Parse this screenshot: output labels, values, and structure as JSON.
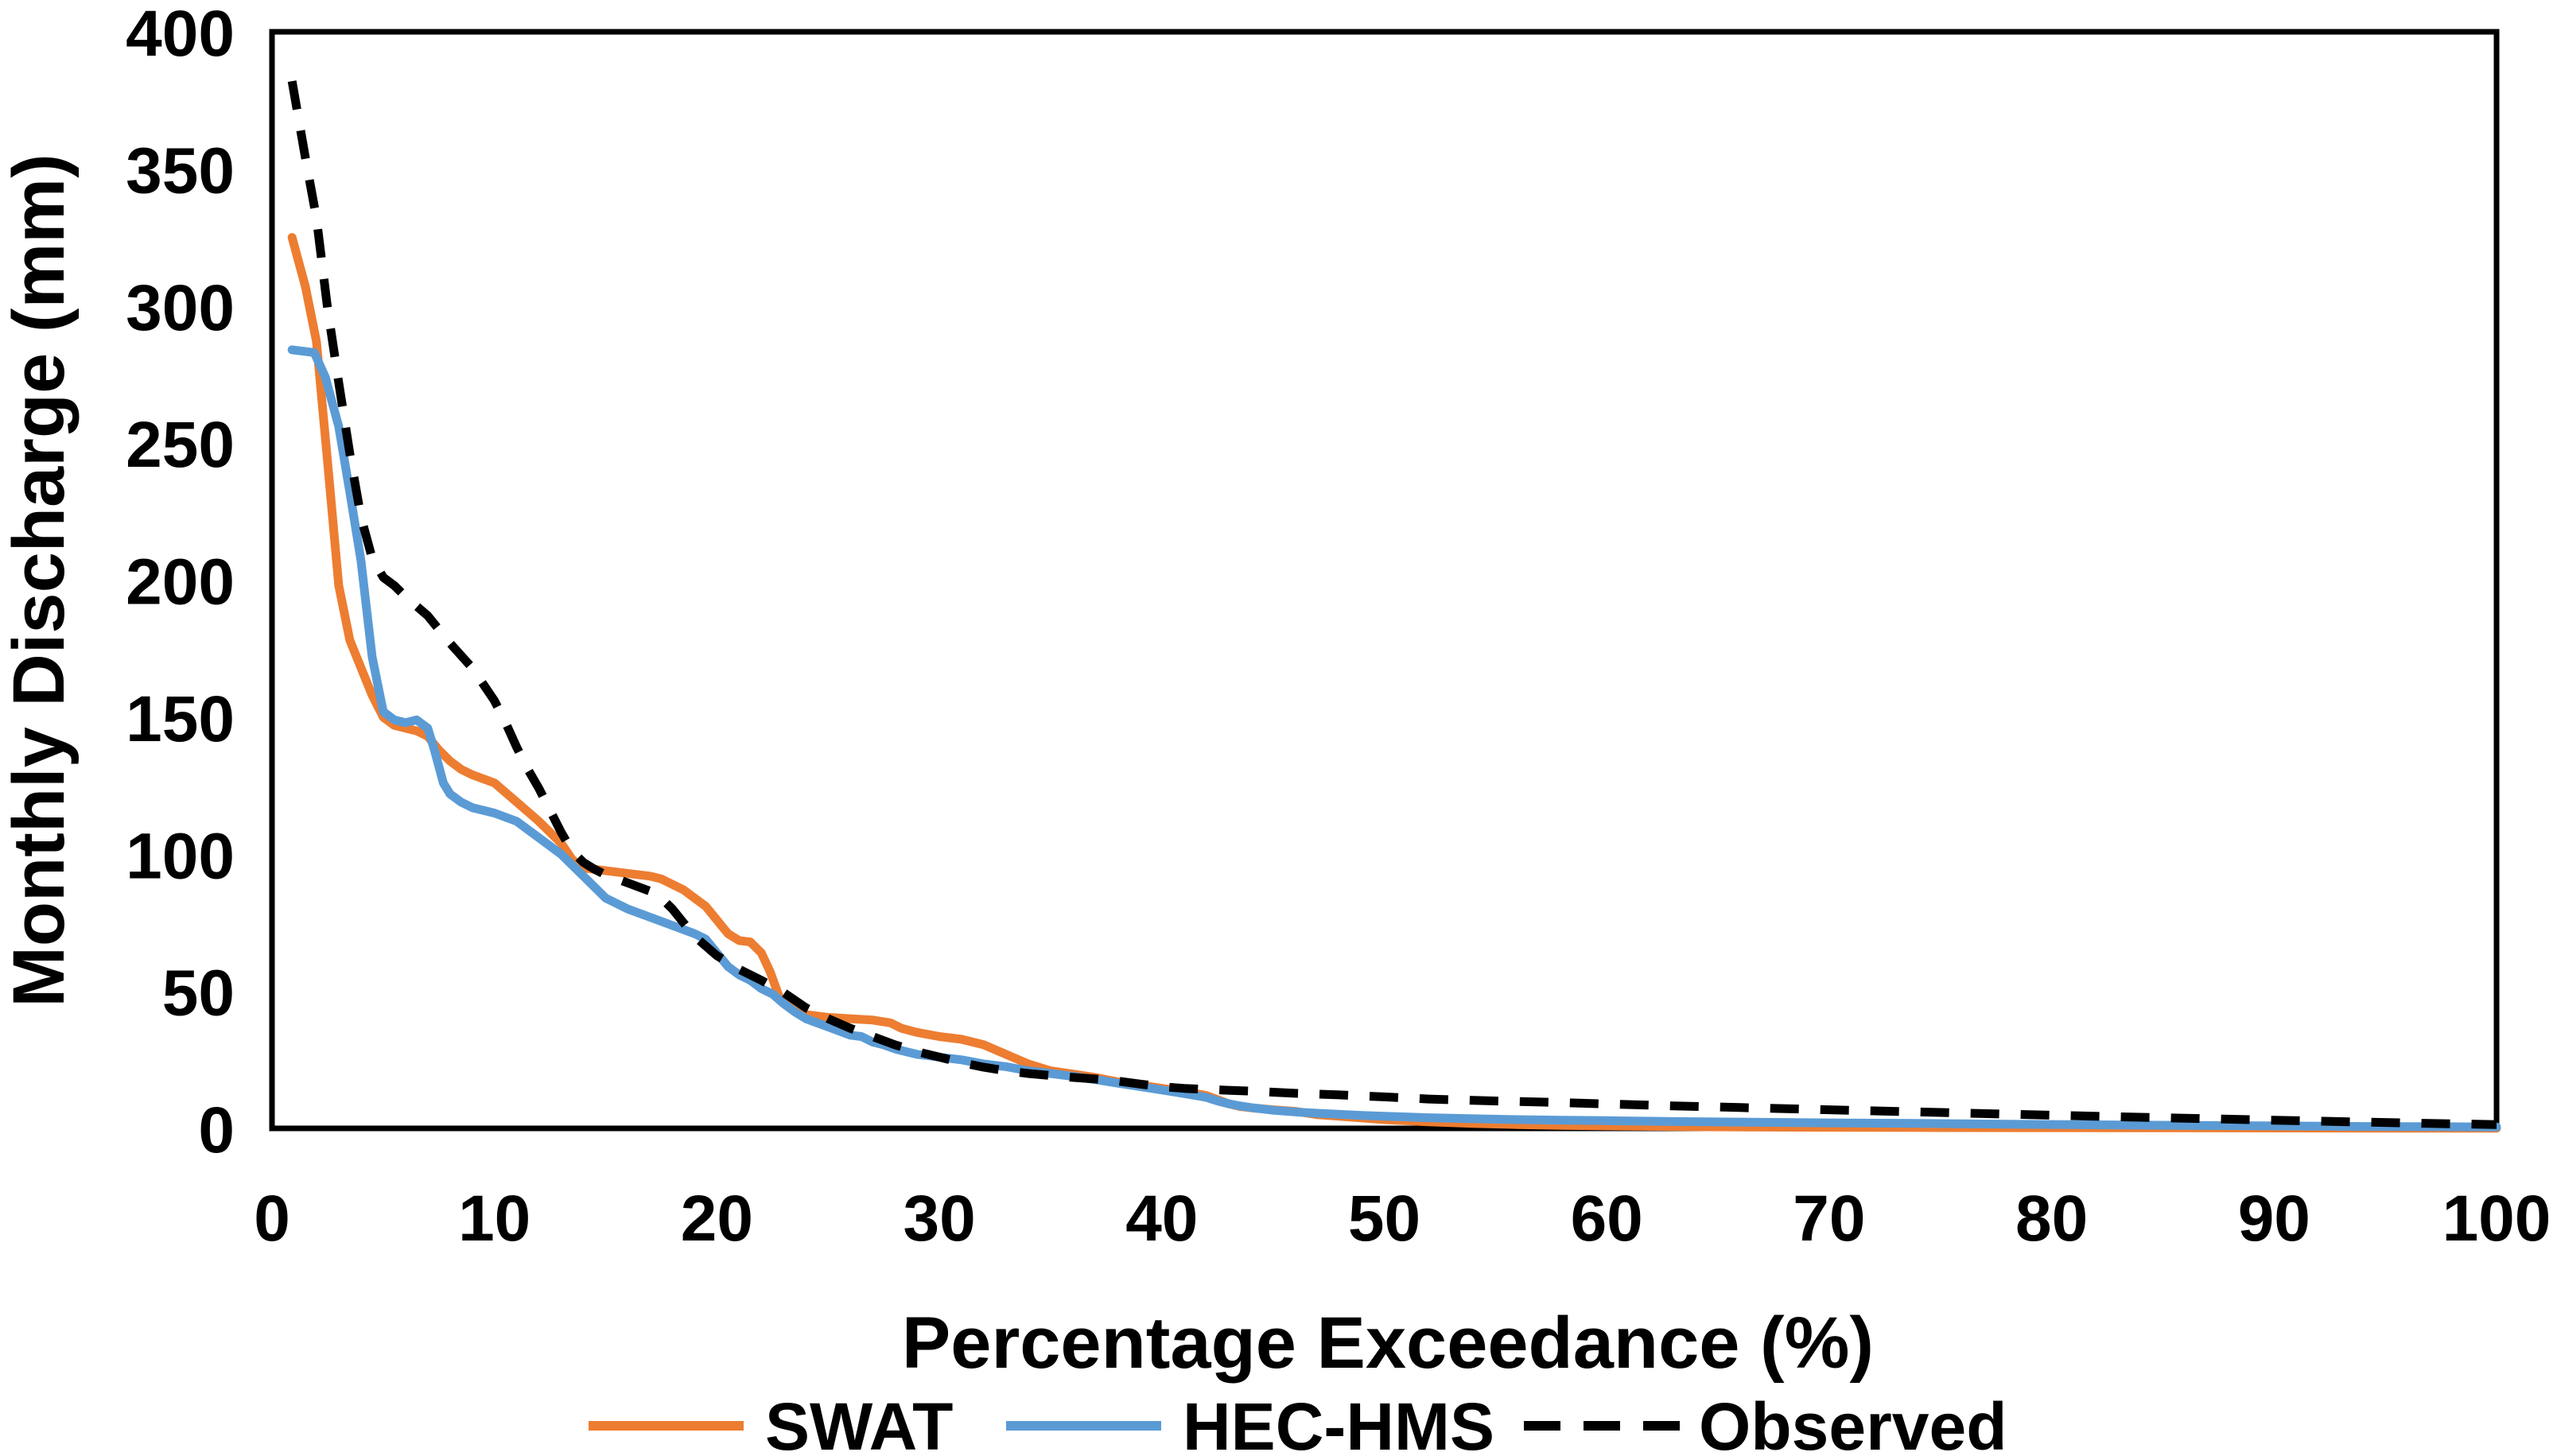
{
  "page": {
    "background": "#ffffff"
  },
  "chart_data": {
    "type": "line",
    "title": "",
    "xlabel": "Percentage Exceedance (%)",
    "ylabel": "Monthly Discharge (mm)",
    "xlim": [
      0,
      100
    ],
    "ylim": [
      0,
      400
    ],
    "x_ticks": [
      0,
      10,
      20,
      30,
      40,
      50,
      60,
      70,
      80,
      90,
      100
    ],
    "y_ticks": [
      0,
      50,
      100,
      150,
      200,
      250,
      300,
      350,
      400
    ],
    "grid": false,
    "plot_border_color": "#000000",
    "text_color": "#000000",
    "legend_position": "bottom-center",
    "series": [
      {
        "name": "SWAT",
        "color": "#ED7D31",
        "style": "solid",
        "points": [
          [
            0.9,
            325
          ],
          [
            1.5,
            307
          ],
          [
            2,
            287
          ],
          [
            2.5,
            243
          ],
          [
            3,
            198
          ],
          [
            3.5,
            178
          ],
          [
            4,
            168
          ],
          [
            4.5,
            158
          ],
          [
            5,
            150
          ],
          [
            5.5,
            147
          ],
          [
            6,
            146
          ],
          [
            6.5,
            145
          ],
          [
            7,
            143
          ],
          [
            7.5,
            138
          ],
          [
            8,
            134
          ],
          [
            8.5,
            131
          ],
          [
            9,
            129
          ],
          [
            10,
            126
          ],
          [
            11,
            119
          ],
          [
            12,
            112
          ],
          [
            13,
            104
          ],
          [
            13.5,
            98
          ],
          [
            14,
            95
          ],
          [
            15,
            94
          ],
          [
            16,
            93
          ],
          [
            17,
            92
          ],
          [
            17.5,
            91
          ],
          [
            18,
            89
          ],
          [
            18.5,
            87
          ],
          [
            19,
            84
          ],
          [
            19.5,
            81
          ],
          [
            20,
            76
          ],
          [
            20.5,
            71
          ],
          [
            21,
            68.5
          ],
          [
            21.5,
            68
          ],
          [
            22,
            64
          ],
          [
            22.4,
            57
          ],
          [
            22.8,
            48
          ],
          [
            23.2,
            45
          ],
          [
            23.6,
            43
          ],
          [
            24,
            41.5
          ],
          [
            25,
            40.5
          ],
          [
            26,
            40
          ],
          [
            27,
            39.5
          ],
          [
            27.8,
            38.5
          ],
          [
            28.3,
            36.5
          ],
          [
            29,
            35
          ],
          [
            30,
            33.5
          ],
          [
            31,
            32.5
          ],
          [
            32,
            30.5
          ],
          [
            33,
            27
          ],
          [
            34,
            23.5
          ],
          [
            35,
            21
          ],
          [
            36,
            19.8
          ],
          [
            37,
            18.6
          ],
          [
            38,
            17
          ],
          [
            39,
            15.8
          ],
          [
            40,
            14.6
          ],
          [
            41,
            13.5
          ],
          [
            42,
            12
          ],
          [
            42.5,
            10.5
          ],
          [
            43,
            9
          ],
          [
            43.5,
            8
          ],
          [
            44,
            7.5
          ],
          [
            45,
            6.8
          ],
          [
            46,
            6.2
          ],
          [
            47,
            5
          ],
          [
            48,
            4.4
          ],
          [
            49,
            3.8
          ],
          [
            50,
            3.2
          ],
          [
            52,
            2.4
          ],
          [
            54,
            1.8
          ],
          [
            56,
            1.4
          ],
          [
            58,
            1.1
          ],
          [
            60,
            0.9
          ],
          [
            63,
            0.7
          ],
          [
            66,
            0.5
          ],
          [
            70,
            0.4
          ],
          [
            75,
            0.3
          ],
          [
            80,
            0.25
          ],
          [
            85,
            0.2
          ],
          [
            90,
            0.15
          ],
          [
            95,
            0.1
          ],
          [
            100,
            0.1
          ]
        ]
      },
      {
        "name": "HEC-HMS",
        "color": "#5B9BD5",
        "style": "solid",
        "points": [
          [
            0.9,
            284
          ],
          [
            1.9,
            283
          ],
          [
            2.4,
            274
          ],
          [
            3,
            256
          ],
          [
            3.5,
            232
          ],
          [
            4,
            207
          ],
          [
            4.5,
            172
          ],
          [
            5,
            152
          ],
          [
            5.5,
            149
          ],
          [
            6,
            148
          ],
          [
            6.5,
            149
          ],
          [
            7,
            146
          ],
          [
            7.3,
            138
          ],
          [
            7.7,
            126
          ],
          [
            8,
            122
          ],
          [
            8.5,
            119
          ],
          [
            9,
            117
          ],
          [
            10,
            115
          ],
          [
            11,
            112
          ],
          [
            12,
            106
          ],
          [
            13,
            100
          ],
          [
            14,
            92
          ],
          [
            15,
            84
          ],
          [
            16,
            80
          ],
          [
            17,
            77
          ],
          [
            18,
            74
          ],
          [
            19,
            71
          ],
          [
            19.5,
            69
          ],
          [
            20,
            64
          ],
          [
            20.5,
            59
          ],
          [
            21,
            56
          ],
          [
            21.5,
            54
          ],
          [
            22,
            51
          ],
          [
            22.5,
            49
          ],
          [
            23,
            45.5
          ],
          [
            23.5,
            42.5
          ],
          [
            24,
            40
          ],
          [
            24.5,
            38.5
          ],
          [
            25,
            37
          ],
          [
            25.5,
            35.5
          ],
          [
            26,
            34
          ],
          [
            26.5,
            33.5
          ],
          [
            27,
            31.5
          ],
          [
            27.5,
            30.5
          ],
          [
            28,
            29
          ],
          [
            28.5,
            28
          ],
          [
            29,
            27
          ],
          [
            29.5,
            26.5
          ],
          [
            30,
            26
          ],
          [
            31,
            25
          ],
          [
            32,
            23.5
          ],
          [
            33,
            22.5
          ],
          [
            34,
            21
          ],
          [
            35,
            20
          ],
          [
            36,
            19
          ],
          [
            37,
            17.8
          ],
          [
            38,
            16.5
          ],
          [
            39,
            15.3
          ],
          [
            40,
            14
          ],
          [
            41,
            12.7
          ],
          [
            42,
            11.3
          ],
          [
            42.5,
            10
          ],
          [
            43,
            9
          ],
          [
            43.5,
            8.2
          ],
          [
            44,
            7.6
          ],
          [
            45,
            6.6
          ],
          [
            46,
            6
          ],
          [
            47,
            5.5
          ],
          [
            48,
            5.1
          ],
          [
            49,
            4.7
          ],
          [
            50,
            4.4
          ],
          [
            52,
            3.9
          ],
          [
            54,
            3.5
          ],
          [
            56,
            3.2
          ],
          [
            58,
            3
          ],
          [
            60,
            2.8
          ],
          [
            63,
            2.5
          ],
          [
            66,
            2.3
          ],
          [
            70,
            2
          ],
          [
            74,
            1.8
          ],
          [
            78,
            1.5
          ],
          [
            82,
            1.3
          ],
          [
            86,
            1.1
          ],
          [
            90,
            0.9
          ],
          [
            94,
            0.7
          ],
          [
            97,
            0.6
          ],
          [
            100,
            0.5
          ]
        ]
      },
      {
        "name": "Observed",
        "color": "#000000",
        "style": "dashed",
        "points": [
          [
            0.9,
            382
          ],
          [
            1.5,
            354
          ],
          [
            2,
            332
          ],
          [
            2.5,
            299
          ],
          [
            3,
            272
          ],
          [
            3.5,
            246
          ],
          [
            4,
            223
          ],
          [
            4.5,
            208
          ],
          [
            5,
            201
          ],
          [
            5.5,
            198
          ],
          [
            6,
            194
          ],
          [
            7,
            187
          ],
          [
            8,
            177
          ],
          [
            9,
            168
          ],
          [
            9.5,
            162
          ],
          [
            10,
            156
          ],
          [
            10.5,
            148
          ],
          [
            11,
            139
          ],
          [
            11.5,
            131
          ],
          [
            12,
            124
          ],
          [
            12.5,
            116
          ],
          [
            13,
            108
          ],
          [
            13.5,
            101
          ],
          [
            14,
            97
          ],
          [
            14.5,
            94.5
          ],
          [
            15,
            92.5
          ],
          [
            16,
            89.5
          ],
          [
            17,
            86.5
          ],
          [
            17.5,
            84
          ],
          [
            18,
            80
          ],
          [
            18.5,
            75
          ],
          [
            19,
            70
          ],
          [
            19.5,
            66.5
          ],
          [
            20,
            63
          ],
          [
            20.5,
            60.5
          ],
          [
            21,
            58
          ],
          [
            22,
            54
          ],
          [
            23,
            49.5
          ],
          [
            24,
            44
          ],
          [
            25,
            40
          ],
          [
            26,
            36.5
          ],
          [
            27,
            33.5
          ],
          [
            28,
            30.5
          ],
          [
            29,
            28
          ],
          [
            30,
            26
          ],
          [
            31,
            24
          ],
          [
            32,
            22.3
          ],
          [
            33,
            21
          ],
          [
            34,
            20
          ],
          [
            35,
            19.3
          ],
          [
            36,
            18.6
          ],
          [
            37,
            18
          ],
          [
            38,
            17.3
          ],
          [
            39,
            16.2
          ],
          [
            40,
            15.2
          ],
          [
            41,
            14.6
          ],
          [
            42,
            14.2
          ],
          [
            43,
            13.9
          ],
          [
            44,
            13.6
          ],
          [
            45,
            13.2
          ],
          [
            46,
            12.8
          ],
          [
            47,
            12.5
          ],
          [
            48,
            12.2
          ],
          [
            49,
            11.8
          ],
          [
            50,
            11.5
          ],
          [
            52,
            10.7
          ],
          [
            54,
            10.2
          ],
          [
            56,
            9.8
          ],
          [
            58,
            9.4
          ],
          [
            60,
            8.9
          ],
          [
            63,
            8.2
          ],
          [
            66,
            7.6
          ],
          [
            70,
            6.8
          ],
          [
            74,
            6
          ],
          [
            78,
            5.2
          ],
          [
            82,
            4.4
          ],
          [
            86,
            3.7
          ],
          [
            90,
            3
          ],
          [
            94,
            2.3
          ],
          [
            97,
            1.8
          ],
          [
            100,
            1.4
          ]
        ]
      }
    ]
  }
}
